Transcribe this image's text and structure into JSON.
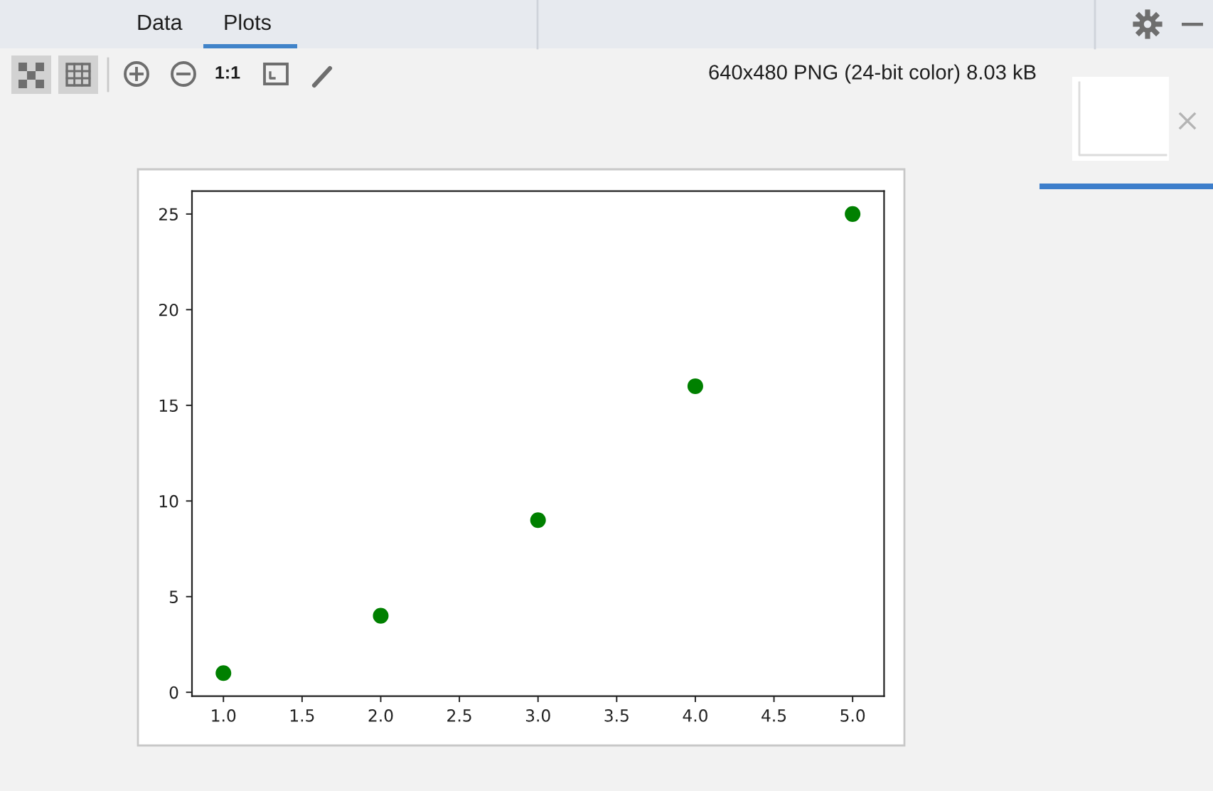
{
  "chart_data": {
    "type": "scatter",
    "x": [
      1,
      2,
      3,
      4,
      5
    ],
    "values": [
      1,
      4,
      9,
      16,
      25
    ],
    "color": "#008000",
    "marker": "circle",
    "xlim": [
      0.8,
      5.2
    ],
    "ylim": [
      -0.2,
      26.2
    ],
    "xticks": [
      {
        "value": 1,
        "label": "1.0"
      },
      {
        "value": 1.5,
        "label": "1.5"
      },
      {
        "value": 2,
        "label": "2.0"
      },
      {
        "value": 2.5,
        "label": "2.5"
      },
      {
        "value": 3,
        "label": "3.0"
      },
      {
        "value": 3.5,
        "label": "3.5"
      },
      {
        "value": 4,
        "label": "4.0"
      },
      {
        "value": 4.5,
        "label": "4.5"
      },
      {
        "value": 5,
        "label": "5.0"
      }
    ],
    "yticks": [
      0,
      5,
      10,
      15,
      20,
      25
    ],
    "annotations": [
      "Data",
      "Plots",
      "1:1",
      "640x480 PNG (24-bit color) 8.03 kB"
    ]
  }
}
